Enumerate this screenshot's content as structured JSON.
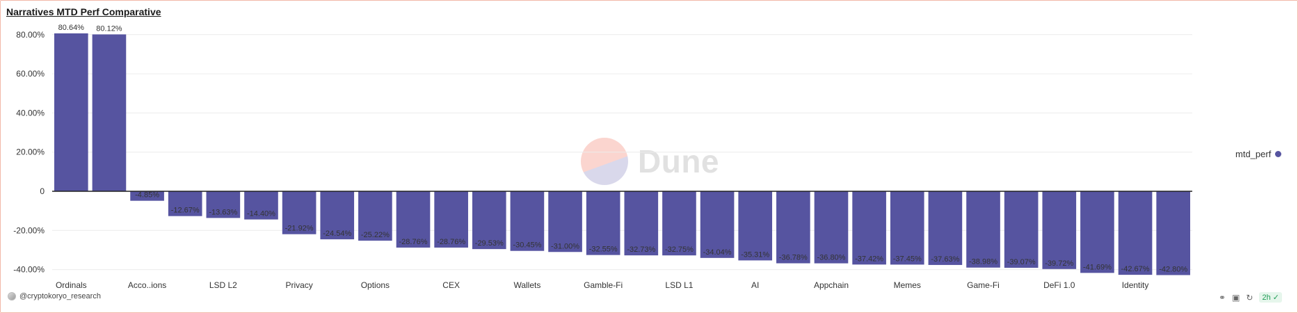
{
  "title": "Narratives MTD Perf Comparative",
  "legend": {
    "label": "mtd_perf",
    "color": "#5654a0"
  },
  "watermark": {
    "text": "Dune"
  },
  "footer": {
    "author": "@cryptokoryo_research",
    "badge": "2h"
  },
  "chart_data": {
    "type": "bar",
    "title": "Narratives MTD Perf Comparative",
    "xlabel": "",
    "ylabel": "",
    "ylim": [
      -45,
      80.64
    ],
    "yticks": [
      -40,
      -20,
      0,
      20,
      40,
      60,
      80
    ],
    "ytick_labels": [
      "-40.00%",
      "-20.00%",
      "0",
      "20.00%",
      "40.00%",
      "60.00%",
      "80.00%"
    ],
    "grid": true,
    "legend_position": "right",
    "bar_color": "#5654a0",
    "x_tick_labels": [
      "Ordinals",
      "",
      "Acco..ions",
      "",
      "LSD L2",
      "",
      "Privacy",
      "",
      "Options",
      "",
      "CEX",
      "",
      "Wallets",
      "",
      "Gamble-Fi",
      "",
      "LSD L1",
      "",
      "AI",
      "",
      "Appchain",
      "",
      "Memes",
      "",
      "Game-Fi",
      "",
      "DeFi 1.0",
      "",
      "Identity",
      ""
    ],
    "series": [
      {
        "name": "mtd_perf",
        "values": [
          80.64,
          80.12,
          -4.85,
          -12.67,
          -13.63,
          -14.4,
          -21.92,
          -24.54,
          -25.22,
          -28.76,
          -28.76,
          -29.53,
          -30.45,
          -31.0,
          -32.55,
          -32.73,
          -32.75,
          -34.04,
          -35.31,
          -36.78,
          -36.8,
          -37.42,
          -37.45,
          -37.63,
          -38.98,
          -39.07,
          -39.72,
          -41.69,
          -42.67,
          -42.8
        ],
        "labels": [
          "80.64%",
          "80.12%",
          "-4.85%",
          "-12.67%",
          "-13.63%",
          "-14.40%",
          "-21.92%",
          "-24.54%",
          "-25.22%",
          "-28.76%",
          "-28.76%",
          "-29.53%",
          "-30.45%",
          "-31.00%",
          "-32.55%",
          "-32.73%",
          "-32.75%",
          "-34.04%",
          "-35.31%",
          "-36.78%",
          "-36.80%",
          "-37.42%",
          "-37.45%",
          "-37.63%",
          "-38.98%",
          "-39.07%",
          "-39.72%",
          "-41.69%",
          "-42.67%",
          "-42.80%"
        ]
      }
    ]
  }
}
